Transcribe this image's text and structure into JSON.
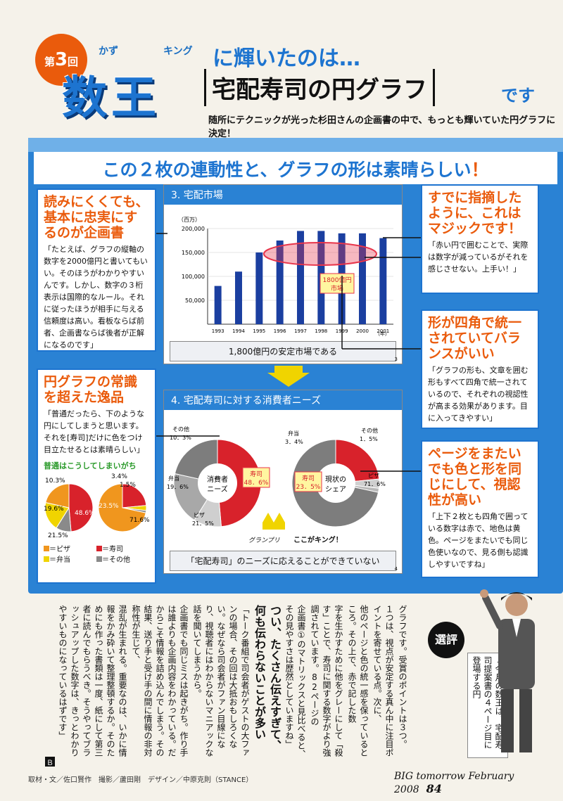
{
  "header": {
    "round_label": "第",
    "round_number": "3",
    "round_suffix": "回",
    "ruby_kazu": "かず",
    "ruby_king": "キング",
    "title_big": "数王",
    "title_a": "に輝いたのは…",
    "title_box": "宅配寿司の円グラフ",
    "title_b": "です",
    "subtitle": "随所にテクニックが光った杉田さんの企画書の中で、もっとも輝いていた円グラフに決定！"
  },
  "headline": {
    "main": "この２枚の連動性と、グラフの形は素晴らしい",
    "mark": "！"
  },
  "notes": {
    "left1": {
      "title": "読みにくくても、基本に忠実にするのが企画書",
      "body": "「たとえば、グラフの縦軸の数字を2000億円と書いてもいい。そのほうがわかりやすいんです。しかし、数字の３桁表示は国際的なルール。それに従ったほうが相手に与える信頼度は高い。看板ならば前者、企画書ならば後者が正解になるのです」"
    },
    "right1": {
      "title": "すでに指摘したように、これはマジックです！",
      "body": "「赤い円で囲むことで、実際は数字が減っているがそれを感じさせない。上手い！」"
    },
    "right2": {
      "title": "形が四角で統一されていてバランスがいい",
      "body": "「グラフの形も、文章を囲む形もすべて四角で統一されているので、それぞれの視認性が高まる効果があります。目に入ってきやすい」"
    },
    "left2": {
      "title": "円グラフの常識を超えた逸品",
      "body": "「普通だったら、下のような円にしてしまうと思います。それを[寿司]だけに色をつけ目立たせるとは素晴らしい」",
      "sub": "普通はこうしてしまいがち"
    },
    "right3": {
      "title": "ページをまたいでも色と形を同じにして、視認性が高い",
      "body": "「上下２枚とも四角で囲っている数字は赤で、地色は黄色。ページをまたいでも同じ色使いなので、見る側も認識しやすいですね」"
    }
  },
  "slide1": {
    "title": "3. 宅配市場",
    "unit": "（百万）",
    "year_unit": "（年）",
    "footer": "1,800億円の安定市場である",
    "page_no": "3",
    "callout_line1": "1800億円",
    "callout_line2": "市場"
  },
  "slide2": {
    "title": "4. 宅配寿司に対する消費者ニーズ",
    "footer": "「宅配寿司」のニーズに応えることができていない",
    "page_no": "4",
    "needs_center_1": "消費者",
    "needs_center_2": "ニーズ",
    "share_center_1": "現状の",
    "share_center_2": "シェア",
    "needs_labels": {
      "other": "その他",
      "other_v": "10．3%",
      "bento": "弁当",
      "bento_v": "19．6%",
      "pizza": "ピザ",
      "pizza_v": "21．5%",
      "sushi": "寿司",
      "sushi_v": "48．6%"
    },
    "share_labels": {
      "bento": "弁当",
      "bento_v": "3．4%",
      "other": "その他",
      "other_v": "1．5%",
      "pizza": "ピザ",
      "pizza_v": "71．6%",
      "sushi": "寿司",
      "sushi_v": "23．5%"
    },
    "crown": "グランプリ",
    "king": "ここがキング！"
  },
  "mini_legend": {
    "pizza": "＝ピザ",
    "sushi": "＝寿司",
    "bento": "＝弁当",
    "other": "＝その他"
  },
  "mini_pie_labels": {
    "a1": "10.3%",
    "a2": "19.6%",
    "a3": "21.5%",
    "a4": "48.6%",
    "b1": "3.4%",
    "b2": "1.5%",
    "b3": "23.5%",
    "b4": "71.6%"
  },
  "article": {
    "heading_1": "つい、たくさん伝えすぎて、",
    "heading_2": "何も伝わらないことが多い",
    "columns": [
      "グラフです。受賞のポイントは３つ。",
      "１つは、視点が安定する真ん中に注目ポイントを寄せている点。次に、",
      "他のページと色の統一感を保っているところ。その上で、赤で記した数",
      "字を生かすために他をグレーにして「殺す」ことで、寿司に関する数字がより強調されています。82ページの",
      "企画書①のマトリックスと見比べると、その見やすさは歴然としていますね」",
      "「トーク番組で司会者がゲストの大ファンの場合、その回は大抵おもしろくない。なぜなら司会者がファン目線になり、視聴者にはわからないマニアックな話を聞いてしまうから。",
      "企画書でも同じミスは起きがち。作り手は誰よりも企画内容をわかっている。だからこそ情報を詰め込んでしまう。その結果、送り手と受け手の間に情報の非対称性が生じて、",
      "混乱が生まれる。重要なのは、いかに情報をかみ砕いて整理整頓するか。そのためにも作った書類は一度、紙にして第三者に読んでもらうべき。そうやってブラッシュアップした数字は、きっとわかりやすいものになっているはずです」"
    ],
    "end_mark": "Ｂ"
  },
  "senpyo": {
    "badge": "選評",
    "quote": "「今月の数王は、宅配寿司提案書の４ページ目に登場する円"
  },
  "footer": {
    "credits": "取材・文／佐口賢作　撮影／蘆田剛　デザイン／中原克則（STANCE）",
    "magazine": "BIG tomorrow  February 2008",
    "page": "84"
  },
  "chart_data": [
    {
      "type": "bar",
      "title": "3. 宅配市場",
      "categories": [
        "1993",
        "1994",
        "1995",
        "1996",
        "1997",
        "1998",
        "1999",
        "2000",
        "2001"
      ],
      "values": [
        80000,
        110000,
        150000,
        175000,
        195000,
        195000,
        190000,
        190000,
        180000
      ],
      "ylabel": "（百万）",
      "xlabel": "（年）",
      "yticks": [
        50000,
        100000,
        150000,
        200000
      ],
      "ytick_labels": [
        "50,000",
        "100,000",
        "150,000",
        "200,000"
      ],
      "ylim": [
        0,
        200000
      ],
      "colors": {
        "bar": "#1b3fa0",
        "highlight": "#e8344a"
      }
    },
    {
      "type": "pie",
      "title": "消費者ニーズ",
      "labels": [
        "寿司",
        "その他",
        "弁当",
        "ピザ"
      ],
      "values": [
        48.6,
        10.3,
        19.6,
        21.5
      ],
      "colors": [
        "#d8222b",
        "#cfcfcf",
        "#a8a8a8",
        "#7d7d7d"
      ]
    },
    {
      "type": "pie",
      "title": "現状のシェア",
      "labels": [
        "寿司",
        "弁当",
        "その他",
        "ピザ"
      ],
      "values": [
        23.5,
        3.4,
        1.5,
        71.6
      ],
      "colors": [
        "#d8222b",
        "#cfcfcf",
        "#b8b8b8",
        "#7d7d7d"
      ]
    },
    {
      "type": "pie",
      "title": "普通はこうしてしまいがち（消費者ニーズ）",
      "labels": [
        "寿司",
        "その他",
        "弁当",
        "ピザ"
      ],
      "values": [
        48.6,
        10.3,
        19.6,
        21.5
      ],
      "colors": [
        "#d8222b",
        "#8a8a8a",
        "#f0d400",
        "#f0961e"
      ]
    },
    {
      "type": "pie",
      "title": "普通はこうしてしまいがち（現状のシェア）",
      "labels": [
        "寿司",
        "弁当",
        "その他",
        "ピザ"
      ],
      "values": [
        23.5,
        3.4,
        1.5,
        71.6
      ],
      "colors": [
        "#d8222b",
        "#f0d400",
        "#8a8a8a",
        "#f0961e"
      ]
    }
  ]
}
